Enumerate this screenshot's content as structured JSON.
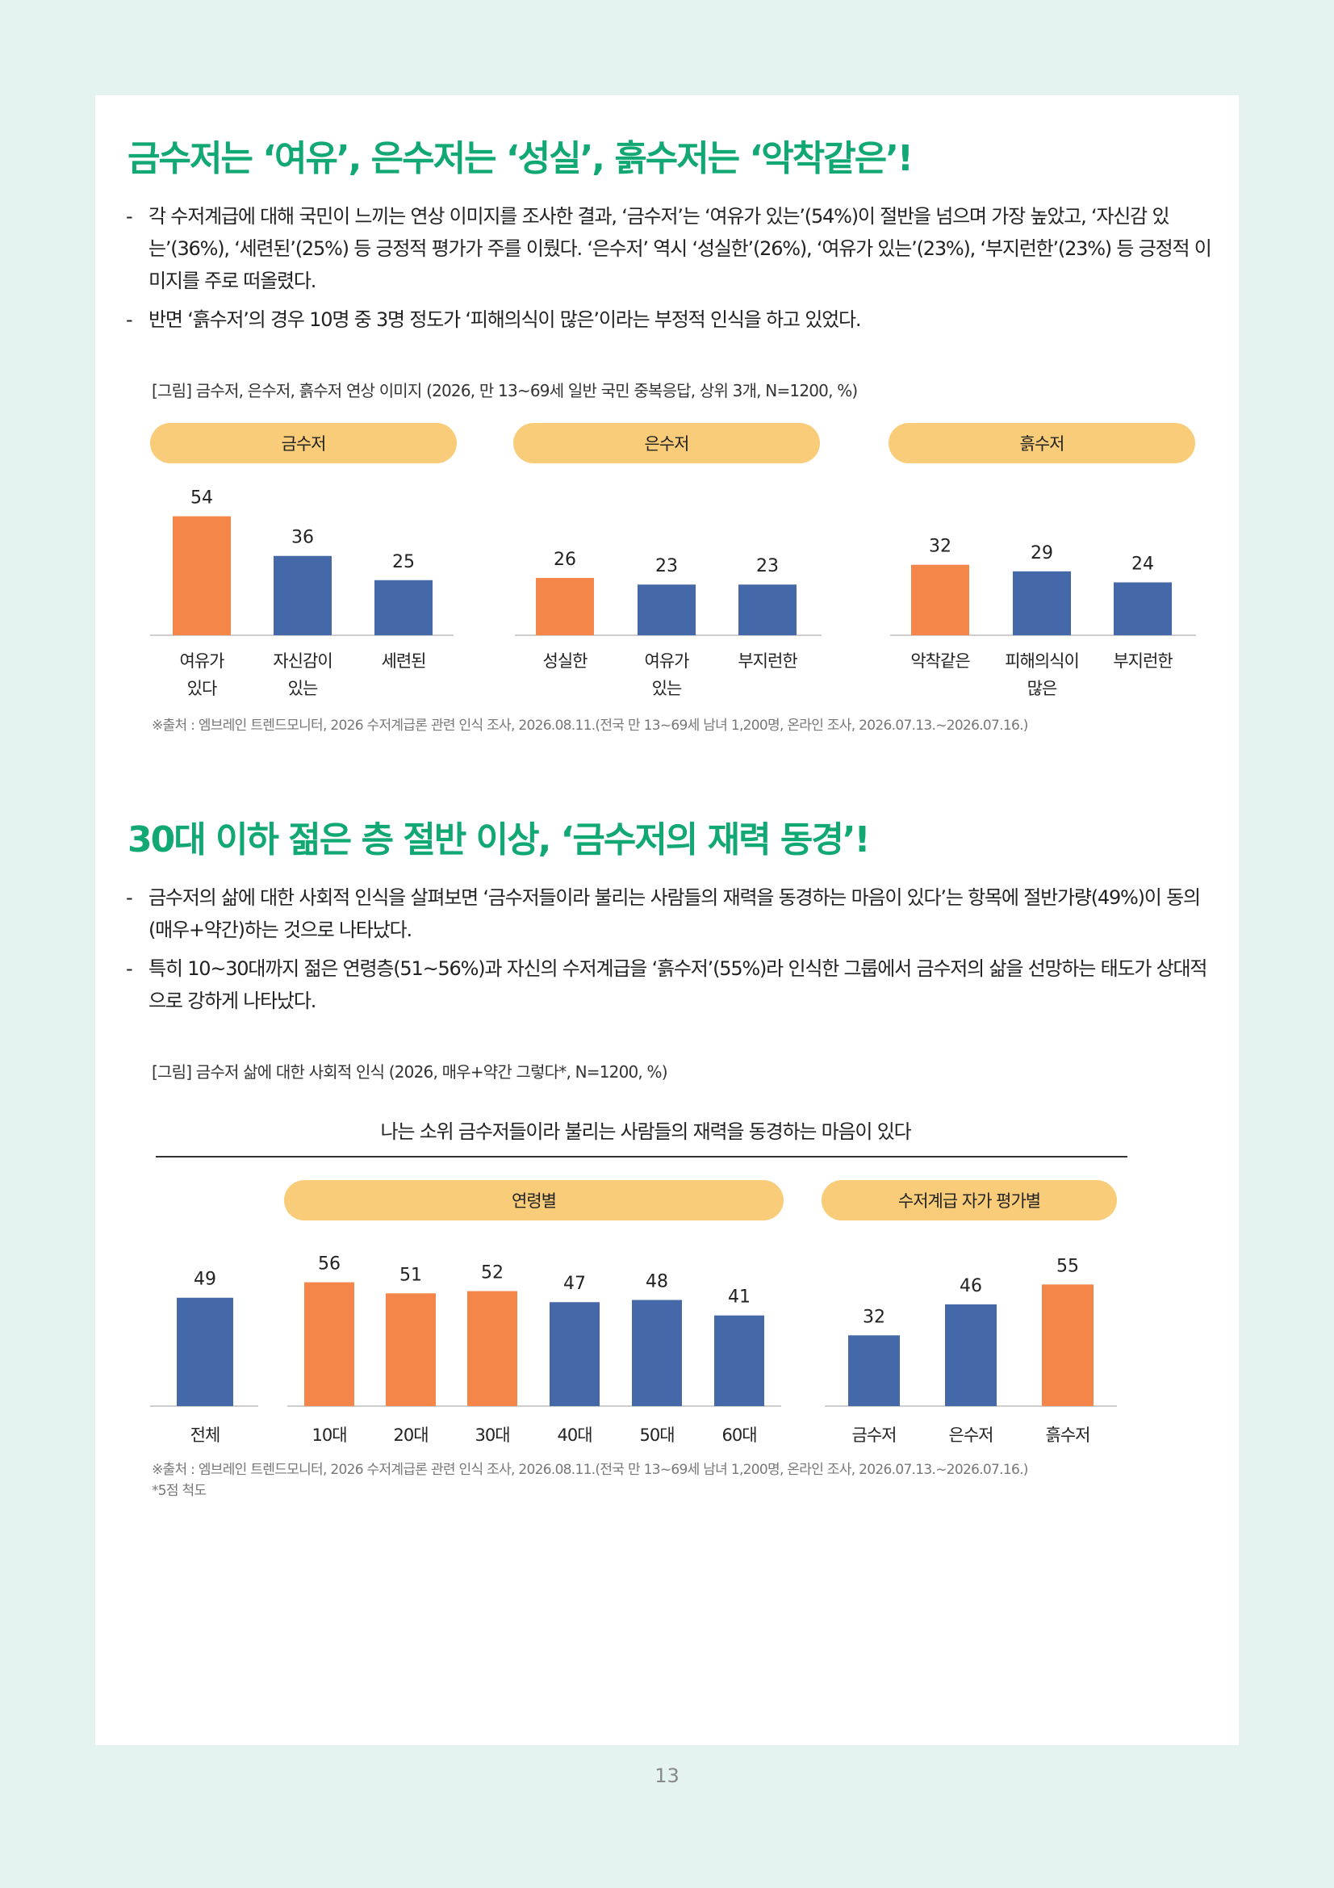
{
  "colors": {
    "accent": "#12a874",
    "bar_highlight": "#f5864a",
    "bar_base": "#4569a8",
    "pill": "#f9cc79"
  },
  "section1": {
    "heading": "금수저는 ‘여유’, 은수저는 ‘성실’, 흙수저는 ‘악착같은’!",
    "bullets": [
      "각 수저계급에 대해 국민이 느끼는 연상 이미지를 조사한 결과, ‘금수저’는 ‘여유가 있는’(54%)이 절반을 넘으며 가장 높았고, ‘자신감 있는’(36%), ‘세련된’(25%) 등 긍정적 평가가 주를 이뤘다. ‘은수저’ 역시 ‘성실한’(26%), ‘여유가 있는’(23%), ‘부지런한’(23%) 등 긍정적 이미지를 주로 떠올렸다.",
      "반면 ‘흙수저’의 경우 10명 중 3명 정도가 ‘피해의식이 많은’이라는 부정적 인식을 하고 있었다."
    ],
    "caption": "[그림] 금수저, 은수저, 흙수저 연상 이미지 (2026, 만 13~69세 일반 국민 중복응답, 상위 3개, N=1200, %)",
    "source": "※출처 : 엠브레인 트렌드모니터, 2026 수저계급론 관련 인식 조사, 2026.08.11.(전국 만 13~69세 남녀 1,200명, 온라인 조사, 2026.07.13.~2026.07.16.)"
  },
  "section2": {
    "heading": "30대 이하 젊은 층 절반 이상, ‘금수저의 재력 동경’!",
    "bullets": [
      "금수저의 삶에 대한 사회적 인식을 살펴보면 ‘금수저들이라 불리는 사람들의 재력을 동경하는 마음이 있다’는 항목에 절반가량(49%)이 동의(매우+약간)하는 것으로 나타났다.",
      "특히 10~30대까지 젊은 연령층(51~56%)과 자신의 수저계급을 ‘흙수저’(55%)라 인식한 그룹에서 금수저의 삶을 선망하는 태도가 상대적으로 강하게 나타났다."
    ],
    "caption": "[그림] 금수저 삶에 대한 사회적 인식 (2026, 매우+약간 그렇다*, N=1200, %)",
    "chart_title": "나는 소위 금수저들이라 불리는 사람들의 재력을 동경하는 마음이 있다",
    "source": "※출처 : 엠브레인 트렌드모니터, 2026 수저계급론 관련 인식 조사, 2026.08.11.(전국 만 13~69세 남녀 1,200명, 온라인 조사, 2026.07.13.~2026.07.16.)",
    "footnote": "*5점 척도"
  },
  "page_number": "13",
  "chart_data": [
    {
      "type": "bar",
      "title": "금수저",
      "categories": [
        [
          "여유가",
          "있다"
        ],
        [
          "자신감이",
          "있는"
        ],
        [
          "세련된"
        ]
      ],
      "values": [
        54,
        36,
        25
      ],
      "highlight": [
        true,
        false,
        false
      ],
      "ylim": [
        0,
        60
      ]
    },
    {
      "type": "bar",
      "title": "은수저",
      "categories": [
        [
          "성실한"
        ],
        [
          "여유가",
          "있는"
        ],
        [
          "부지런한"
        ]
      ],
      "values": [
        26,
        23,
        23
      ],
      "highlight": [
        true,
        false,
        false
      ],
      "ylim": [
        0,
        60
      ]
    },
    {
      "type": "bar",
      "title": "흙수저",
      "categories": [
        [
          "악착같은"
        ],
        [
          "피해의식이",
          "많은"
        ],
        [
          "부지런한"
        ]
      ],
      "values": [
        32,
        29,
        24
      ],
      "highlight": [
        true,
        false,
        false
      ],
      "ylim": [
        0,
        60
      ]
    },
    {
      "type": "bar",
      "title": "",
      "categories": [
        [
          "전체"
        ]
      ],
      "values": [
        49
      ],
      "highlight": [
        false
      ],
      "ylim": [
        0,
        60
      ]
    },
    {
      "type": "bar",
      "title": "연령별",
      "categories": [
        [
          "10대"
        ],
        [
          "20대"
        ],
        [
          "30대"
        ],
        [
          "40대"
        ],
        [
          "50대"
        ],
        [
          "60대"
        ]
      ],
      "values": [
        56,
        51,
        52,
        47,
        48,
        41
      ],
      "highlight": [
        true,
        true,
        true,
        false,
        false,
        false
      ],
      "ylim": [
        0,
        60
      ]
    },
    {
      "type": "bar",
      "title": "수저계급 자가 평가별",
      "categories": [
        [
          "금수저"
        ],
        [
          "은수저"
        ],
        [
          "흙수저"
        ]
      ],
      "values": [
        32,
        46,
        55
      ],
      "highlight": [
        false,
        false,
        true
      ],
      "ylim": [
        0,
        60
      ]
    }
  ]
}
